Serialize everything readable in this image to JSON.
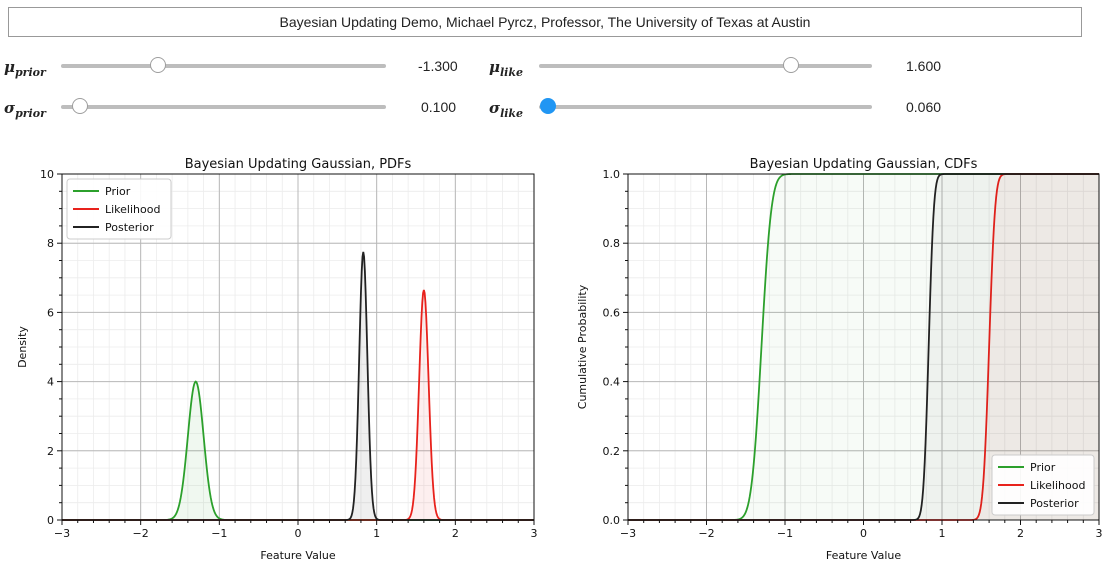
{
  "app": {
    "title": "Bayesian Updating Demo, Michael Pyrcz, Professor, The University of Texas at Austin"
  },
  "sliders": [
    {
      "id": "mu-prior",
      "symbol": "μ",
      "sub": "prior",
      "value": -1.3,
      "value_text": "-1.300",
      "min": -3.0,
      "max": 3.0
    },
    {
      "id": "mu-like",
      "symbol": "μ",
      "sub": "like",
      "value": 1.6,
      "value_text": "1.600",
      "min": -3.0,
      "max": 3.0
    },
    {
      "id": "sigma-prior",
      "symbol": "σ",
      "sub": "prior",
      "value": 0.1,
      "value_text": "0.100",
      "min": 0.0,
      "max": 3.0
    },
    {
      "id": "sigma-like",
      "symbol": "σ",
      "sub": "like",
      "value": 0.06,
      "value_text": "0.060",
      "min": 0.06,
      "max": 3.0
    }
  ],
  "colors": {
    "prior": "#2ca02c",
    "likelihood": "#e8221c",
    "posterior": "#222222",
    "slider_active": "#2196f3"
  },
  "chart_data": [
    {
      "type": "line",
      "title": "Bayesian Updating Gaussian, PDFs",
      "xlabel": "Feature Value",
      "ylabel": "Density",
      "xlim": [
        -3,
        3
      ],
      "ylim": [
        0,
        10
      ],
      "xticks": [
        -3,
        -2,
        -1,
        0,
        1,
        2,
        3
      ],
      "yticks": [
        0,
        2,
        4,
        6,
        8,
        10
      ],
      "ytick_labels": [
        "0",
        "2",
        "4",
        "6",
        "8",
        "10"
      ],
      "grid": true,
      "legend": "top-left",
      "series": [
        {
          "name": "Prior",
          "mean": -1.3,
          "sd": 0.1,
          "peak": 4.0,
          "color": "#2ca02c"
        },
        {
          "name": "Likelihood",
          "mean": 1.6,
          "sd": 0.06,
          "peak": 6.65,
          "color": "#e8221c"
        },
        {
          "name": "Posterior",
          "mean": 0.83,
          "sd": 0.052,
          "peak": 7.75,
          "color": "#222222"
        }
      ]
    },
    {
      "type": "line",
      "title": "Bayesian Updating Gaussian, CDFs",
      "xlabel": "Feature Value",
      "ylabel": "Cumulative Probability",
      "xlim": [
        -3,
        3
      ],
      "ylim": [
        0,
        1
      ],
      "xticks": [
        -3,
        -2,
        -1,
        0,
        1,
        2,
        3
      ],
      "yticks": [
        0,
        0.2,
        0.4,
        0.6,
        0.8,
        1.0
      ],
      "ytick_labels": [
        "0.0",
        "0.2",
        "0.4",
        "0.6",
        "0.8",
        "1.0"
      ],
      "grid": true,
      "legend": "bottom-right",
      "series": [
        {
          "name": "Prior",
          "mean": -1.3,
          "sd": 0.1,
          "color": "#2ca02c"
        },
        {
          "name": "Likelihood",
          "mean": 1.6,
          "sd": 0.06,
          "color": "#e8221c"
        },
        {
          "name": "Posterior",
          "mean": 0.83,
          "sd": 0.052,
          "color": "#222222"
        }
      ]
    }
  ]
}
